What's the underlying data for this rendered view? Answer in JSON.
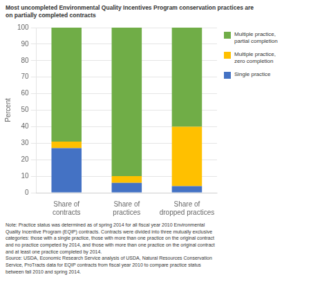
{
  "chart_data": {
    "type": "bar",
    "stacked": true,
    "title": "Most uncompleted Environmental Quality Incentives Program conservation practices are\non partially completed contracts",
    "categories": [
      "Share of\ncontracts",
      "Share of\npractices",
      "Share of\ndropped practices"
    ],
    "series": [
      {
        "name": "Single practice",
        "color": "#4472c4",
        "values": [
          27,
          6,
          4
        ]
      },
      {
        "name": "Multiple practice,\nzero completion",
        "color": "#ffc000",
        "values": [
          4,
          4,
          36
        ]
      },
      {
        "name": "Multiple practice,\npartial completion",
        "color": "#70ad47",
        "values": [
          69,
          90,
          60
        ]
      }
    ],
    "ylabel": "Percent",
    "ylim": [
      0,
      100
    ],
    "yticks": [
      0,
      10,
      20,
      30,
      40,
      50,
      60,
      70,
      80,
      90,
      100
    ],
    "grid": true,
    "legend": "right",
    "annotations": [
      "Note: Practice status was determined as of spring 2014 for all fiscal year 2010 Environmental\nQuality Incentive Program (EQIP) contracts. Contracts were divided into three mutually exclusive\ncategories: those with a single practice, those with more than one practice on the original contract\nand no practice competed by 2014, and those with more than one practice on the original contract\nand at least one practice completed by 2014.\nSource: USDA, Economic Research Service analysis of USDA, Natural Resources Conservation\nService, ProTracts data for EQIP contracts from fiscal year 2010 to compare practice status\nbetween fall 2010 and spring 2014."
    ]
  }
}
